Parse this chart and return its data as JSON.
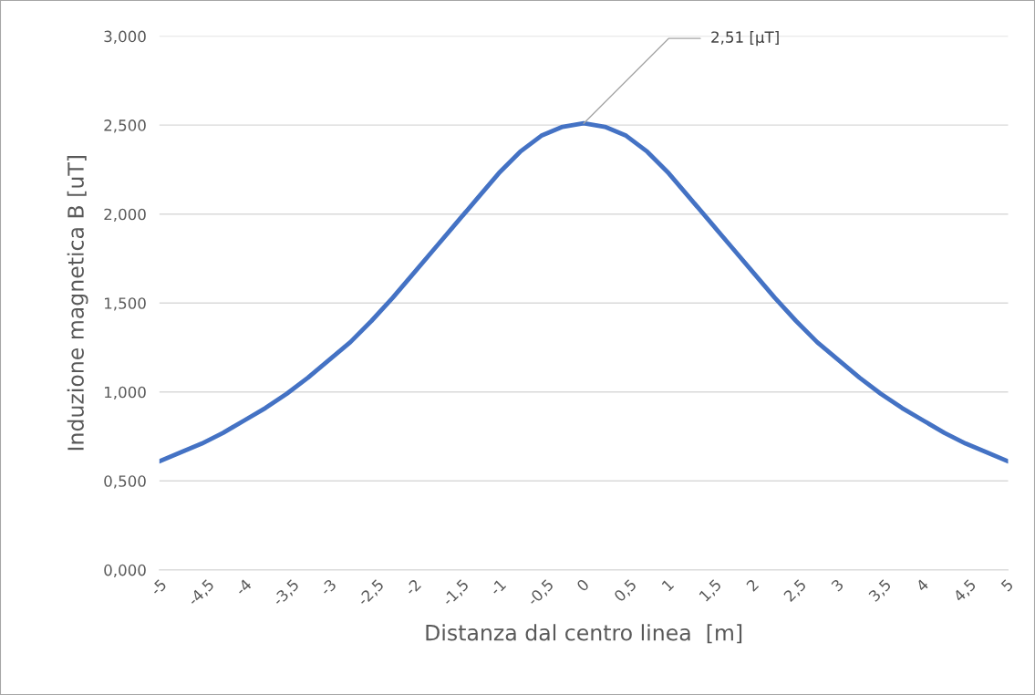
{
  "chart_data": {
    "type": "line",
    "xlabel": "Distanza dal centro linea  [m]",
    "ylabel": "Induzione magnetica B [uT]",
    "x": [
      -5,
      -4.75,
      -4.5,
      -4.25,
      -4,
      -3.75,
      -3.5,
      -3.25,
      -3,
      -2.75,
      -2.5,
      -2.25,
      -2,
      -1.75,
      -1.5,
      -1.25,
      -1,
      -0.75,
      -0.5,
      -0.25,
      0,
      0.25,
      0.5,
      0.75,
      1,
      1.25,
      1.5,
      1.75,
      2,
      2.25,
      2.5,
      2.75,
      3,
      3.25,
      3.5,
      3.75,
      4,
      4.25,
      4.5,
      4.75,
      5
    ],
    "series": [
      {
        "color": "#4472c4",
        "values": [
          0.61,
          0.66,
          0.71,
          0.77,
          0.84,
          0.91,
          0.99,
          1.08,
          1.18,
          1.28,
          1.4,
          1.53,
          1.67,
          1.81,
          1.95,
          2.09,
          2.23,
          2.35,
          2.44,
          2.49,
          2.51,
          2.49,
          2.44,
          2.35,
          2.23,
          2.09,
          1.95,
          1.81,
          1.67,
          1.53,
          1.4,
          1.28,
          1.18,
          1.08,
          0.99,
          0.91,
          0.84,
          0.77,
          0.71,
          0.66,
          0.61
        ]
      }
    ],
    "xlim": [
      -5,
      5
    ],
    "xticks": [
      {
        "value": -5,
        "label": "-5"
      },
      {
        "value": -4.5,
        "label": "-4,5"
      },
      {
        "value": -4,
        "label": "-4"
      },
      {
        "value": -3.5,
        "label": "-3,5"
      },
      {
        "value": -3,
        "label": "-3"
      },
      {
        "value": -2.5,
        "label": "-2,5"
      },
      {
        "value": -2,
        "label": "-2"
      },
      {
        "value": -1.5,
        "label": "-1,5"
      },
      {
        "value": -1,
        "label": "-1"
      },
      {
        "value": -0.5,
        "label": "-0,5"
      },
      {
        "value": 0,
        "label": "0"
      },
      {
        "value": 0.5,
        "label": "0,5"
      },
      {
        "value": 1,
        "label": "1"
      },
      {
        "value": 1.5,
        "label": "1,5"
      },
      {
        "value": 2,
        "label": "2"
      },
      {
        "value": 2.5,
        "label": "2,5"
      },
      {
        "value": 3,
        "label": "3"
      },
      {
        "value": 3.5,
        "label": "3,5"
      },
      {
        "value": 4,
        "label": "4"
      },
      {
        "value": 4.5,
        "label": "4,5"
      },
      {
        "value": 5,
        "label": "5"
      }
    ],
    "ylim": [
      0,
      3
    ],
    "yticks": [
      {
        "value": 0,
        "label": "0,000"
      },
      {
        "value": 0.5,
        "label": "0,500"
      },
      {
        "value": 1,
        "label": "1,000"
      },
      {
        "value": 1.5,
        "label": "1,500"
      },
      {
        "value": 2,
        "label": "2,000"
      },
      {
        "value": 2.5,
        "label": "2,500"
      },
      {
        "value": 3,
        "label": "3,000"
      }
    ],
    "grid": "y",
    "marker": "none",
    "line_style": "solid",
    "annotations": [
      {
        "text": "2,51 [μT]",
        "x": 0,
        "y": 2.51
      }
    ]
  }
}
